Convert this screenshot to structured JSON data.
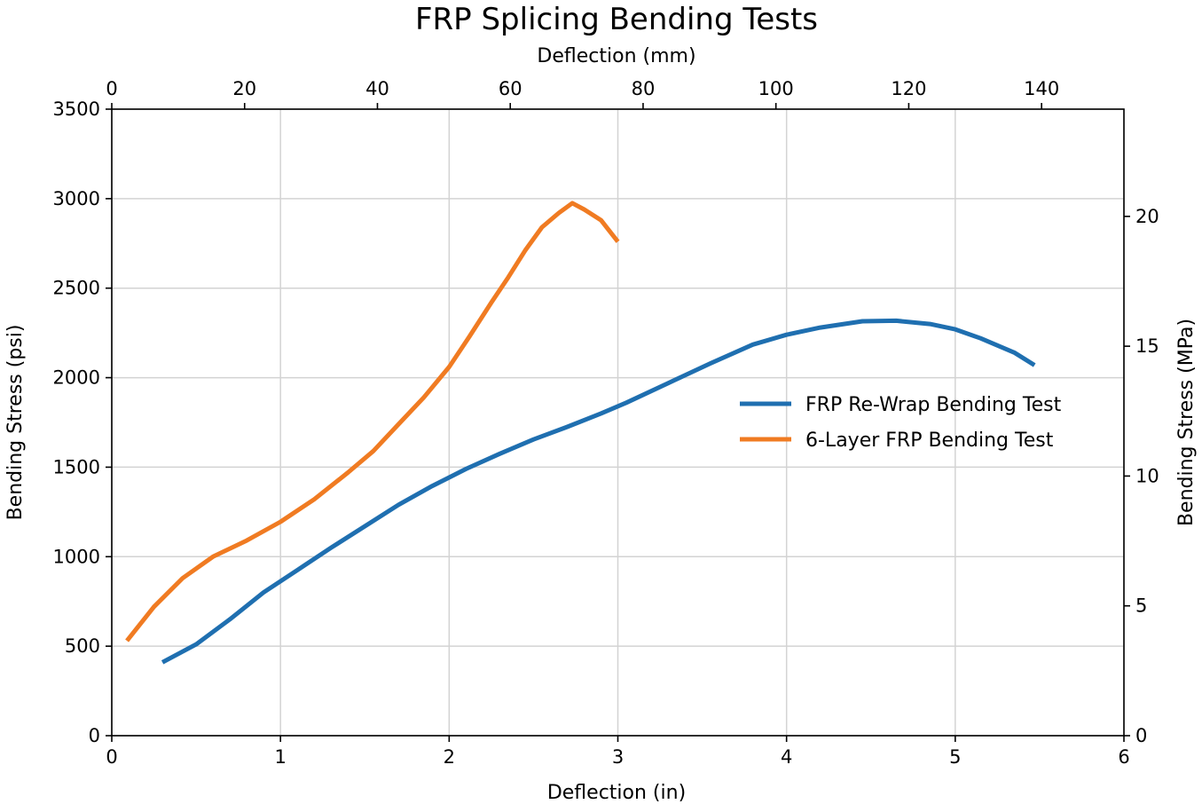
{
  "chart_data": {
    "type": "line",
    "title": "FRP Splicing Bending Tests",
    "xlabel": "Deflection (in)",
    "ylabel": "Bending Stress (psi)",
    "x2label": "Deflection (mm)",
    "y2label": "Bending Stress (MPa)",
    "xlim": [
      0,
      6
    ],
    "ylim": [
      0,
      3500
    ],
    "x2lim": [
      0,
      152.4
    ],
    "y2lim": [
      0,
      24.13
    ],
    "xticks": [
      "0",
      "1",
      "2",
      "3",
      "4",
      "5",
      "6"
    ],
    "yticks": [
      "0",
      "500",
      "1000",
      "1500",
      "2000",
      "2500",
      "3000",
      "3500"
    ],
    "x2ticks": [
      "0",
      "20",
      "40",
      "60",
      "80",
      "100",
      "120",
      "140"
    ],
    "y2ticks": [
      "0",
      "5",
      "10",
      "15",
      "20"
    ],
    "grid": true,
    "legend_position": "center-right",
    "series": [
      {
        "name": "FRP Re-Wrap Bending Test",
        "color": "#1f6fb0",
        "x": [
          0.3,
          0.5,
          0.7,
          0.9,
          1.1,
          1.3,
          1.5,
          1.7,
          1.9,
          2.1,
          2.3,
          2.5,
          2.7,
          2.9,
          3.05,
          3.3,
          3.55,
          3.8,
          4.0,
          4.2,
          4.45,
          4.65,
          4.85,
          5.0,
          5.15,
          5.35,
          5.47
        ],
        "y": [
          410,
          510,
          650,
          800,
          925,
          1050,
          1170,
          1290,
          1395,
          1490,
          1575,
          1655,
          1725,
          1800,
          1860,
          1970,
          2080,
          2185,
          2240,
          2280,
          2315,
          2318,
          2300,
          2270,
          2220,
          2140,
          2070
        ]
      },
      {
        "name": "6-Layer FRP Bending Test",
        "color": "#f07b22",
        "x": [
          0.09,
          0.25,
          0.42,
          0.6,
          0.8,
          1.0,
          1.2,
          1.4,
          1.55,
          1.7,
          1.85,
          2.0,
          2.12,
          2.25,
          2.35,
          2.45,
          2.55,
          2.65,
          2.73,
          2.8,
          2.9,
          3.0
        ],
        "y": [
          530,
          720,
          880,
          1000,
          1090,
          1195,
          1320,
          1470,
          1590,
          1740,
          1890,
          2060,
          2230,
          2420,
          2560,
          2710,
          2840,
          2920,
          2975,
          2940,
          2880,
          2760
        ]
      }
    ]
  }
}
